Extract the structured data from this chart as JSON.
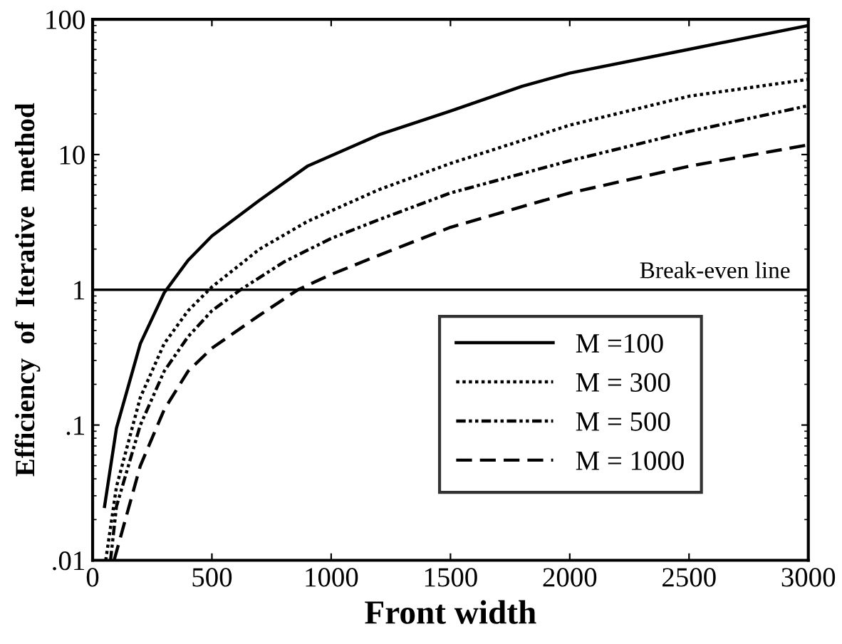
{
  "chart_data": {
    "type": "line",
    "xlabel": "Front width",
    "ylabel": "Efficiency  of  Iterative  method",
    "log": "y",
    "xlim": [
      0,
      3000
    ],
    "xticks": [
      0,
      500,
      1000,
      1500,
      2000,
      2500,
      3000
    ],
    "ylim": [
      0.01,
      100
    ],
    "yticks": [
      {
        "value": 0.01,
        "label": ".01"
      },
      {
        "value": 0.1,
        "label": ".1"
      },
      1,
      10,
      100
    ],
    "grid": false,
    "legend": "bottom right",
    "marker": "none",
    "ref_lines": [
      {
        "axis": "y",
        "value": 1,
        "label": "Break-even line",
        "color": "#000000"
      }
    ],
    "series": [
      {
        "name": "M =100",
        "color": "#000000",
        "line_style": "solid",
        "x": [
          50,
          100,
          200,
          300,
          400,
          500,
          700,
          900,
          1200,
          1500,
          1800,
          2000,
          2500,
          3000
        ],
        "values": [
          0.025,
          0.095,
          0.4,
          0.95,
          1.65,
          2.5,
          4.6,
          8.2,
          14,
          21,
          32,
          40,
          60,
          90
        ]
      },
      {
        "name": "M = 300",
        "color": "#000000",
        "line_style": "dotted",
        "x": [
          55,
          100,
          200,
          300,
          400,
          500,
          700,
          900,
          1200,
          1500,
          2000,
          2500,
          3000
        ],
        "values": [
          0.01,
          0.035,
          0.16,
          0.4,
          0.7,
          1.05,
          2.0,
          3.2,
          5.5,
          8.6,
          16.5,
          27,
          36
        ]
      },
      {
        "name": "M = 500",
        "color": "#000000",
        "line_style": "dashdot",
        "x": [
          75,
          100,
          200,
          300,
          400,
          500,
          620,
          800,
          1000,
          1200,
          1500,
          2000,
          2500,
          3000
        ],
        "values": [
          0.01,
          0.025,
          0.1,
          0.25,
          0.45,
          0.7,
          1.0,
          1.6,
          2.4,
          3.3,
          5.2,
          9,
          14.8,
          23
        ]
      },
      {
        "name": "M = 1000",
        "color": "#000000",
        "line_style": "dashed",
        "x": [
          90,
          200,
          300,
          400,
          500,
          700,
          860,
          1000,
          1200,
          1500,
          2000,
          2500,
          3000
        ],
        "values": [
          0.01,
          0.05,
          0.13,
          0.25,
          0.37,
          0.65,
          1.0,
          1.3,
          1.8,
          2.9,
          5.2,
          8.2,
          11.8
        ]
      }
    ]
  }
}
